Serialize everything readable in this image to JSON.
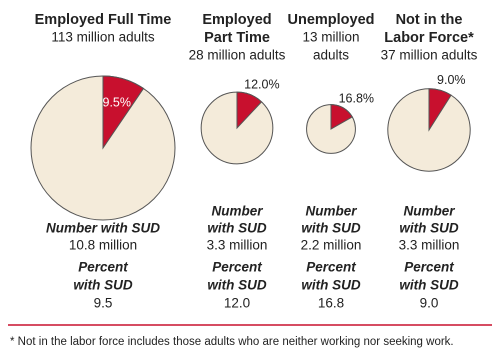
{
  "chart_data": [
    {
      "type": "pie",
      "title": [
        "Employed Full Time"
      ],
      "subtitle": [
        "113 million adults"
      ],
      "size": 113,
      "values": [
        9.5
      ],
      "value_labels": [
        "9.5%"
      ],
      "color": "#c8102e",
      "number_label": [
        "Number with SUD"
      ],
      "number": "10.8 million",
      "percent_label": [
        "Percent",
        "with SUD"
      ],
      "percent": "9.5"
    },
    {
      "type": "pie",
      "title": [
        "Employed",
        "Part Time"
      ],
      "subtitle": [
        "28 million adults"
      ],
      "size": 28,
      "values": [
        12.0
      ],
      "value_labels": [
        "12.0%"
      ],
      "color": "#c8102e",
      "number_label": [
        "Number",
        "with SUD"
      ],
      "number": "3.3 million",
      "percent_label": [
        "Percent",
        "with SUD"
      ],
      "percent": "12.0"
    },
    {
      "type": "pie",
      "title": [
        "Unemployed"
      ],
      "subtitle": [
        "13 million",
        "adults"
      ],
      "size": 13,
      "values": [
        16.8
      ],
      "value_labels": [
        "16.8%"
      ],
      "color": "#c8102e",
      "number_label": [
        "Number",
        "with SUD"
      ],
      "number": "2.2 million",
      "percent_label": [
        "Percent",
        "with SUD"
      ],
      "percent": "16.8"
    },
    {
      "type": "pie",
      "title": [
        "Not in the",
        "Labor Force*"
      ],
      "subtitle": [
        "37 million adults"
      ],
      "size": 37,
      "values": [
        9.0
      ],
      "value_labels": [
        "9.0%"
      ],
      "color": "#c8102e",
      "number_label": [
        "Number",
        "with SUD"
      ],
      "number": "3.3 million",
      "percent_label": [
        "Percent",
        "with SUD"
      ],
      "percent": "9.0"
    }
  ],
  "footnote": "* Not in the labor force includes those adults who are neither working nor seeking work."
}
